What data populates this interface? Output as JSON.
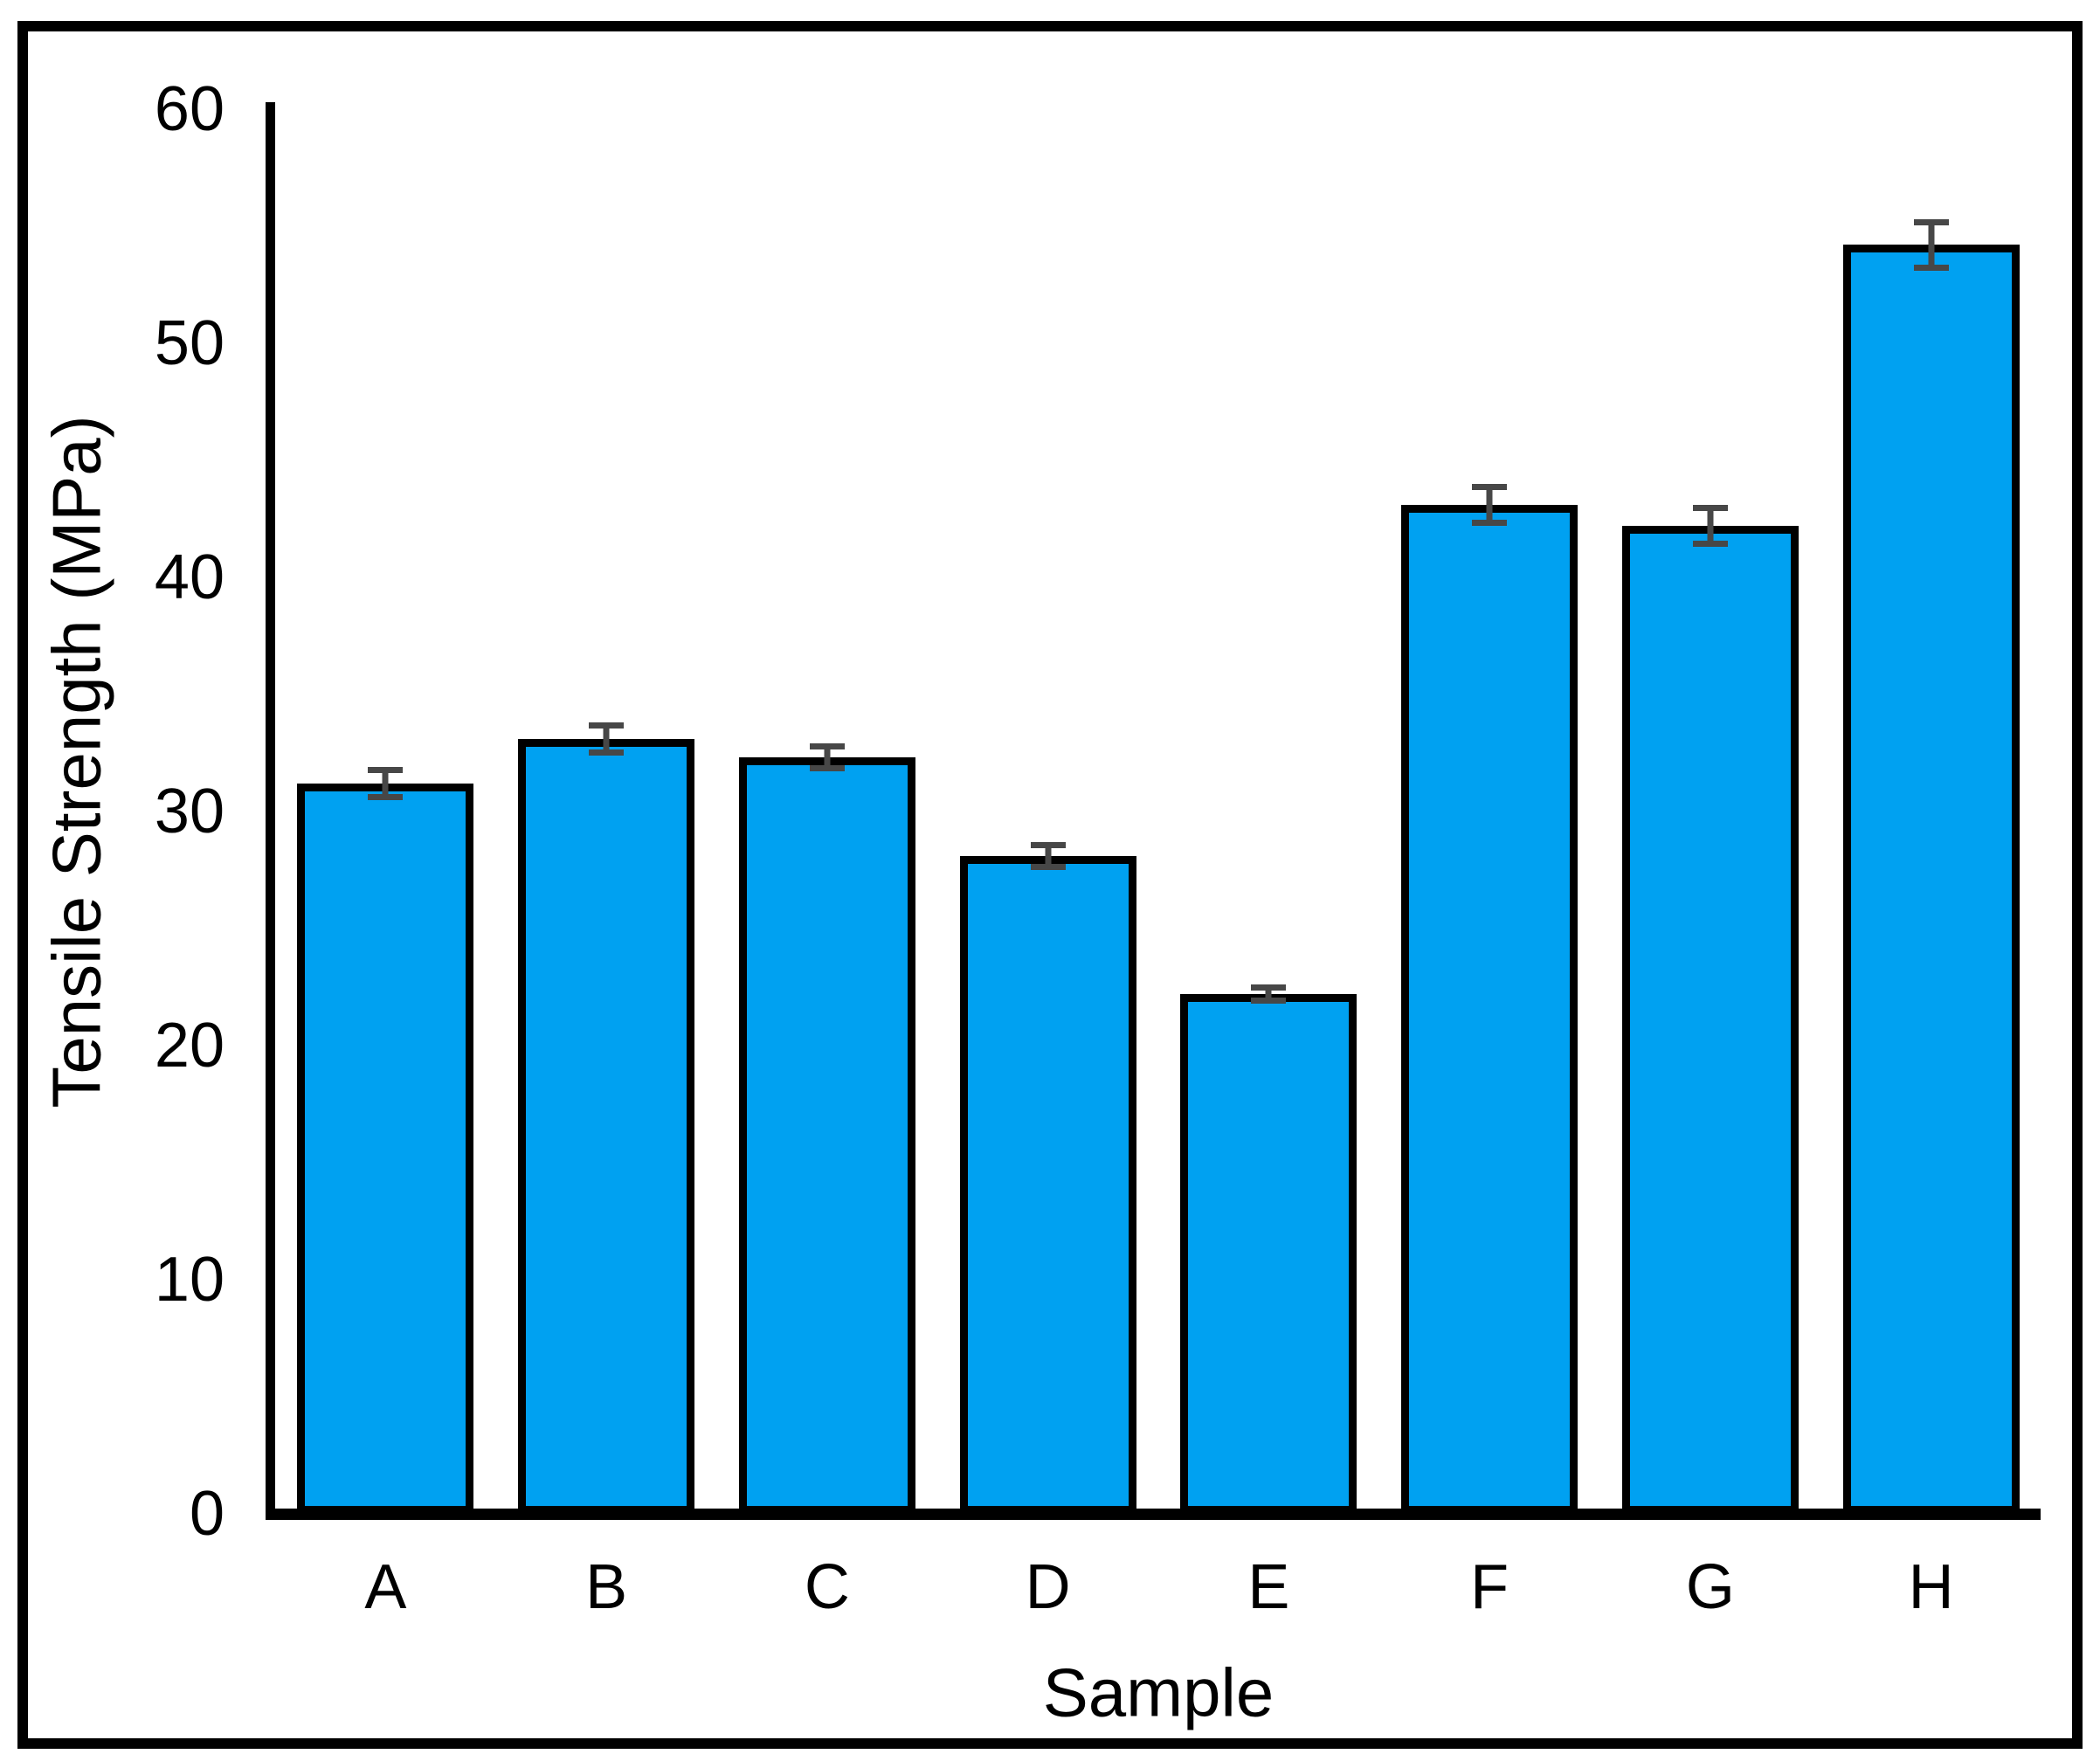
{
  "figure": {
    "y_axis_title": "Tensile Strength (MPa)",
    "x_axis_title": "Sample"
  },
  "chart_data": {
    "type": "bar",
    "title": "",
    "xlabel": "Sample",
    "ylabel": "Tensile Strength (MPa)",
    "categories": [
      "A",
      "B",
      "C",
      "D",
      "E",
      "F",
      "G",
      "H"
    ],
    "series": [
      {
        "name": "Tensile Strength",
        "values": [
          31.2,
          33.1,
          32.3,
          28.1,
          22.2,
          43.1,
          42.2,
          54.2
        ],
        "errors": [
          0.7,
          0.7,
          0.6,
          0.6,
          0.4,
          0.9,
          0.9,
          1.1
        ]
      }
    ],
    "ylim": [
      0,
      60
    ],
    "yticks": [
      0,
      10,
      20,
      30,
      40,
      50,
      60
    ],
    "grid": false,
    "legend": false,
    "layout_hints": {
      "error_bars": true,
      "bar_fill_color": "#00A1F1",
      "bar_border_color": "#000000",
      "error_bar_color": "#474747",
      "axis_color": "#000000",
      "outer_frame_color": "#000000",
      "background_color": "#ffffff"
    }
  }
}
